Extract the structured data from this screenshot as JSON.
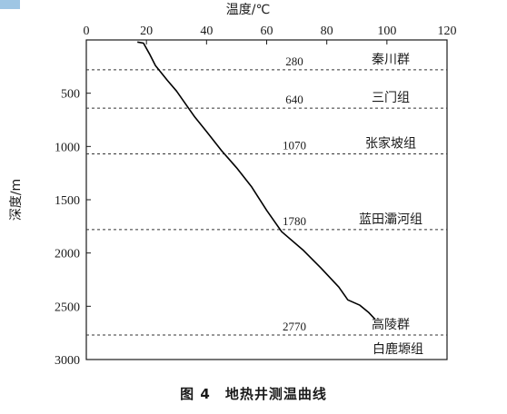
{
  "caption": "图 4　地热井测温曲线",
  "chart_data": {
    "type": "line",
    "xlabel": "温度/℃",
    "ylabel": "深度/m",
    "xlim": [
      0,
      120
    ],
    "ylim": [
      0,
      3000
    ],
    "x_ticks": [
      0,
      20,
      40,
      60,
      80,
      100,
      120
    ],
    "y_ticks": [
      500,
      1000,
      1500,
      2000,
      2500,
      3000
    ],
    "x_axis_position": "top",
    "y_axis_inverted": true,
    "series": [
      {
        "color": "#000000",
        "points": [
          {
            "temperature": 17,
            "depth": 20
          },
          {
            "temperature": 19,
            "depth": 30
          },
          {
            "temperature": 21,
            "depth": 130
          },
          {
            "temperature": 23,
            "depth": 240
          },
          {
            "temperature": 27,
            "depth": 380
          },
          {
            "temperature": 30,
            "depth": 480
          },
          {
            "temperature": 33,
            "depth": 600
          },
          {
            "temperature": 36,
            "depth": 720
          },
          {
            "temperature": 40,
            "depth": 860
          },
          {
            "temperature": 45,
            "depth": 1040
          },
          {
            "temperature": 50,
            "depth": 1200
          },
          {
            "temperature": 55,
            "depth": 1380
          },
          {
            "temperature": 60,
            "depth": 1600
          },
          {
            "temperature": 65,
            "depth": 1800
          },
          {
            "temperature": 72,
            "depth": 1970
          },
          {
            "temperature": 78,
            "depth": 2140
          },
          {
            "temperature": 84,
            "depth": 2320
          },
          {
            "temperature": 87,
            "depth": 2440
          },
          {
            "temperature": 91,
            "depth": 2490
          },
          {
            "temperature": 94,
            "depth": 2560
          },
          {
            "temperature": 96,
            "depth": 2620
          }
        ]
      }
    ],
    "boundaries": [
      {
        "depth": 280,
        "label": "280",
        "formation": "秦川群"
      },
      {
        "depth": 640,
        "label": "640",
        "formation": "三门组"
      },
      {
        "depth": 1070,
        "label": "1070",
        "formation": "张家坡组"
      },
      {
        "depth": 1780,
        "label": "1780",
        "formation": "蓝田灞河组"
      },
      {
        "depth": 2770,
        "label": "2770",
        "formation": "高陵群"
      }
    ],
    "bottom_formation": "白鹿塬组",
    "grid": false,
    "legend": "none"
  }
}
